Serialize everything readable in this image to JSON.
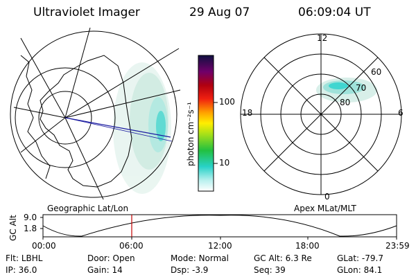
{
  "header": {
    "title": "Ultraviolet Imager",
    "date": "29 Aug 07",
    "time": "06:09:04 UT"
  },
  "colorbar": {
    "unit_label": "photon cm⁻²s⁻¹",
    "ticks": [
      "100",
      "10"
    ]
  },
  "map_labels": {
    "left": "Geographic Lat/Lon",
    "right": "Apex MLat/MLT"
  },
  "polar_plot": {
    "mlt_labels": [
      "12",
      "18",
      "6",
      "0"
    ],
    "mlat_labels": [
      "60",
      "70",
      "80"
    ]
  },
  "altitude_strip": {
    "ylabel": "GC Alt",
    "ytick_top": "9.0",
    "ytick_bottom": "1.8",
    "xticks": [
      "00:00",
      "06:00",
      "12:00",
      "18:00",
      "23:59"
    ]
  },
  "info": {
    "row1": [
      {
        "label": "Flt:",
        "value": "LBHL"
      },
      {
        "label": "Door:",
        "value": "Open"
      },
      {
        "label": "Mode:",
        "value": "Normal"
      },
      {
        "label": "GC Alt:",
        "value": "6.3 Re"
      },
      {
        "label": "GLat:",
        "value": "-79.7"
      }
    ],
    "row2": [
      {
        "label": "IP:",
        "value": "36.0"
      },
      {
        "label": "Gain:",
        "value": "14"
      },
      {
        "label": "Dsp:",
        "value": "-3.9"
      },
      {
        "label": "Seq:",
        "value": "39"
      },
      {
        "label": "GLon:",
        "value": "84.1"
      }
    ]
  },
  "colors": {
    "aurora": "#9fd8cf",
    "aurora_bright": "#2ed6d2",
    "track_line": "#1a1aa0",
    "time_marker": "#c00000"
  }
}
